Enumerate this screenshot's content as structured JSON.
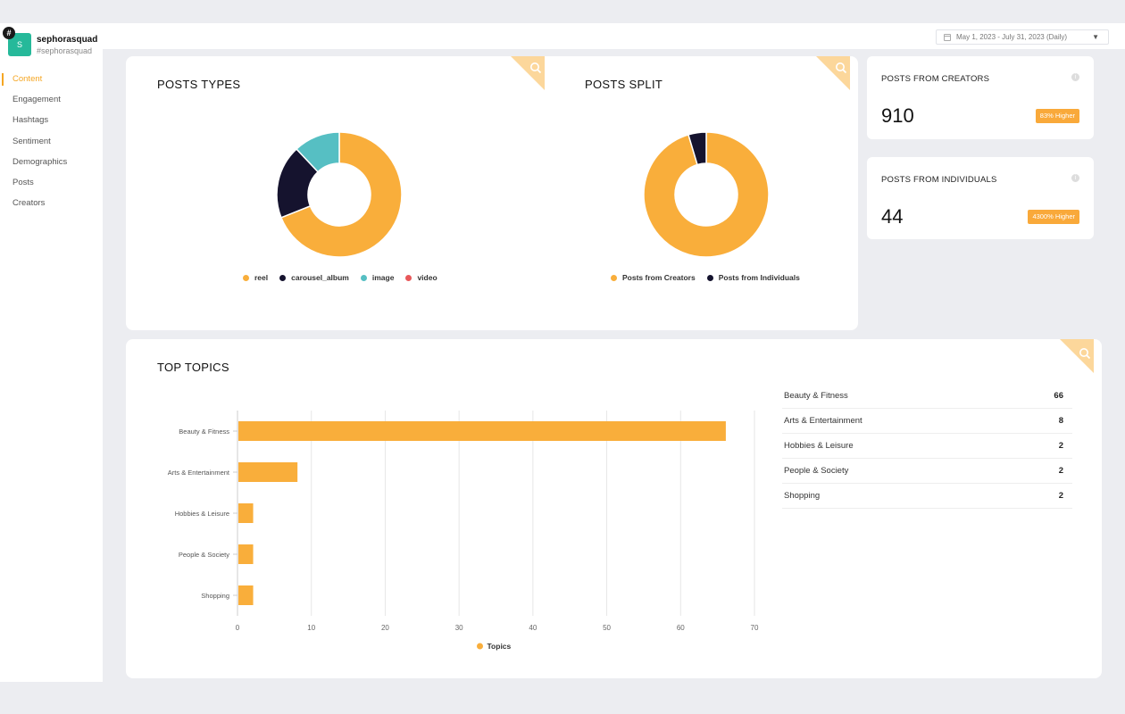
{
  "brand": {
    "avatar_letter": "S",
    "name": "sephorasquad",
    "handle": "#sephorasquad",
    "hash_glyph": "#"
  },
  "date_range": {
    "label": "May 1, 2023 - July 31, 2023 (Daily)"
  },
  "nav": [
    {
      "label": "Content",
      "active": true
    },
    {
      "label": "Engagement"
    },
    {
      "label": "Hashtags"
    },
    {
      "label": "Sentiment"
    },
    {
      "label": "Demographics"
    },
    {
      "label": "Posts"
    },
    {
      "label": "Creators"
    }
  ],
  "colors": {
    "accent": "#f9ae3b",
    "navy": "#15132e",
    "teal": "#56bfc3",
    "red": "#e8585a",
    "corner": "#fcd79b"
  },
  "posts_types": {
    "title": "POSTS TYPES",
    "legend": [
      "reel",
      "carousel_album",
      "image",
      "video"
    ]
  },
  "posts_split": {
    "title": "POSTS SPLIT",
    "legend": [
      "Posts from Creators",
      "Posts from Individuals"
    ]
  },
  "creators_stat": {
    "title": "POSTS FROM CREATORS",
    "value": "910",
    "badge": "83% Higher"
  },
  "individuals_stat": {
    "title": "POSTS FROM INDIVIDUALS",
    "value": "44",
    "badge": "4300% Higher"
  },
  "top_topics": {
    "title": "TOP TOPICS",
    "legend": "Topics",
    "rows": [
      {
        "name": "Beauty & Fitness",
        "count": "66"
      },
      {
        "name": "Arts & Entertainment",
        "count": "8"
      },
      {
        "name": "Hobbies & Leisure",
        "count": "2"
      },
      {
        "name": "People & Society",
        "count": "2"
      },
      {
        "name": "Shopping",
        "count": "2"
      }
    ]
  },
  "chart_data": [
    {
      "type": "pie",
      "donut": true,
      "categories": [
        "reel",
        "carousel_album",
        "image",
        "video"
      ],
      "values": [
        0.69,
        0.19,
        0.12,
        0
      ],
      "colors": [
        "#f9ae3b",
        "#15132e",
        "#56bfc3",
        "#e8585a"
      ]
    },
    {
      "type": "pie",
      "donut": true,
      "categories": [
        "Posts from Creators",
        "Posts from Individuals"
      ],
      "values": [
        910,
        44
      ],
      "colors": [
        "#f9ae3b",
        "#15132e"
      ]
    },
    {
      "type": "bar",
      "orientation": "horizontal",
      "categories": [
        "Beauty & Fitness",
        "Arts & Entertainment",
        "Hobbies & Leisure",
        "People & Society",
        "Shopping"
      ],
      "series": [
        {
          "name": "Topics",
          "values": [
            66,
            8,
            2,
            2,
            2
          ]
        }
      ],
      "xlim": [
        0,
        70
      ],
      "xticks": [
        "0",
        "10",
        "20",
        "30",
        "40",
        "50",
        "60",
        "70"
      ],
      "grid": true,
      "legend": "bottom",
      "color": "#f9ae3b"
    }
  ]
}
